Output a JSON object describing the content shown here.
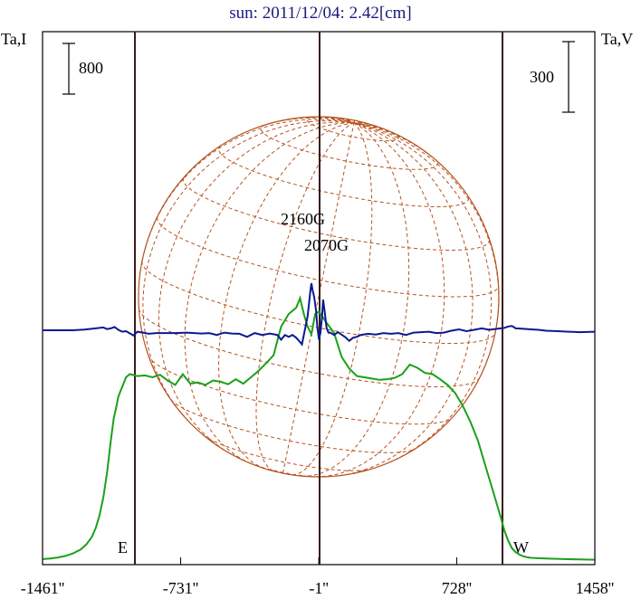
{
  "chart_data": {
    "type": "line",
    "title": "sun: 2011/12/04: 2.42[cm]",
    "left_axis_label": "Ta,I",
    "right_axis_label": "Ta,V",
    "left_scale_bar": "800",
    "right_scale_bar": "300",
    "x_ticks": [
      -1461,
      -731,
      -1,
      728,
      1458
    ],
    "x_tick_labels": [
      "-1461''",
      "-731''",
      "-1''",
      "728''",
      "1458''"
    ],
    "limb_markers": [
      "E",
      "W"
    ],
    "annotations": [
      "2160G",
      "2070G"
    ],
    "grid": false,
    "colors": {
      "intensity": "#1aa01a",
      "polarization": "#0a1a90",
      "solar_grid": "#b5531e",
      "frame": "#000000",
      "limb": "#3a1a1a"
    },
    "series": [
      {
        "key": "intensity",
        "x": [
          -1461,
          -1420,
          -1380,
          -1340,
          -1300,
          -1260,
          -1230,
          -1200,
          -1180,
          -1160,
          -1140,
          -1120,
          -1100,
          -1085,
          -1070,
          -1060,
          -1040,
          -1020,
          -1000,
          -960,
          -920,
          -880,
          -840,
          -800,
          -760,
          -720,
          -680,
          -640,
          -600,
          -560,
          -520,
          -480,
          -440,
          -400,
          -360,
          -320,
          -280,
          -240,
          -200,
          -160,
          -120,
          -100,
          -80,
          -60,
          -40,
          -20,
          0,
          20,
          40,
          60,
          80,
          120,
          160,
          200,
          240,
          280,
          320,
          360,
          400,
          440,
          480,
          520,
          560,
          600,
          640,
          680,
          720,
          760,
          800,
          840,
          880,
          920,
          960,
          980,
          1000,
          1020,
          1040,
          1060,
          1080,
          1100,
          1120,
          1160,
          1200,
          1240,
          1300,
          1380,
          1458
        ],
        "y": [
          30,
          40,
          55,
          80,
          120,
          180,
          260,
          380,
          520,
          720,
          1000,
          1400,
          1900,
          2250,
          2450,
          2600,
          2750,
          2900,
          2950,
          2920,
          2930,
          2900,
          2940,
          2850,
          2780,
          2950,
          2800,
          2820,
          2780,
          2850,
          2830,
          2790,
          2870,
          2800,
          2900,
          3000,
          3120,
          3250,
          3700,
          3900,
          4000,
          4150,
          3900,
          3700,
          3580,
          3900,
          3940,
          3850,
          3760,
          3680,
          3600,
          3220,
          3040,
          2920,
          2900,
          2880,
          2860,
          2870,
          2890,
          2950,
          3100,
          3050,
          2970,
          2950,
          2870,
          2780,
          2650,
          2450,
          2200,
          1900,
          1500,
          1100,
          700,
          480,
          320,
          200,
          140,
          100,
          75,
          60,
          50,
          45,
          40,
          35,
          30,
          25,
          20
        ]
      },
      {
        "key": "polarization",
        "x": [
          -1461,
          -1380,
          -1300,
          -1240,
          -1180,
          -1140,
          -1120,
          -1100,
          -1080,
          -1060,
          -1040,
          -1020,
          -980,
          -960,
          -930,
          -900,
          -860,
          -800,
          -760,
          -700,
          -660,
          -620,
          -580,
          -540,
          -500,
          -460,
          -420,
          -380,
          -340,
          -300,
          -260,
          -220,
          -200,
          -180,
          -160,
          -140,
          -120,
          -100,
          -90,
          -80,
          -70,
          -60,
          -45,
          -40,
          -35,
          -25,
          -15,
          -8,
          0,
          8,
          16,
          22,
          30,
          40,
          50,
          60,
          80,
          100,
          140,
          160,
          180,
          200,
          220,
          260,
          300,
          340,
          380,
          420,
          460,
          500,
          540,
          580,
          620,
          660,
          700,
          740,
          780,
          820,
          860,
          900,
          940,
          980,
          1000,
          1020,
          1040,
          1080,
          1120,
          1160,
          1200,
          1260,
          1320,
          1380,
          1458
        ],
        "y": [
          0,
          0,
          0,
          3,
          8,
          12,
          5,
          8,
          14,
          2,
          -6,
          -4,
          -22,
          -6,
          -10,
          -15,
          -12,
          -12,
          -12,
          -10,
          -12,
          -14,
          -12,
          -20,
          -10,
          -14,
          -15,
          -28,
          -12,
          -20,
          -14,
          -20,
          -40,
          -20,
          -28,
          -20,
          -32,
          -50,
          -60,
          -20,
          20,
          60,
          170,
          200,
          175,
          140,
          80,
          10,
          -40,
          -10,
          60,
          130,
          80,
          10,
          -10,
          -10,
          -20,
          -8,
          -30,
          -45,
          -32,
          -28,
          -20,
          -15,
          -18,
          -12,
          -15,
          -12,
          -20,
          -10,
          -8,
          -6,
          -12,
          -10,
          -2,
          4,
          -4,
          2,
          8,
          2,
          6,
          10,
          16,
          18,
          8,
          6,
          4,
          2,
          -2,
          -4,
          -6,
          -8,
          -6
        ]
      }
    ]
  }
}
